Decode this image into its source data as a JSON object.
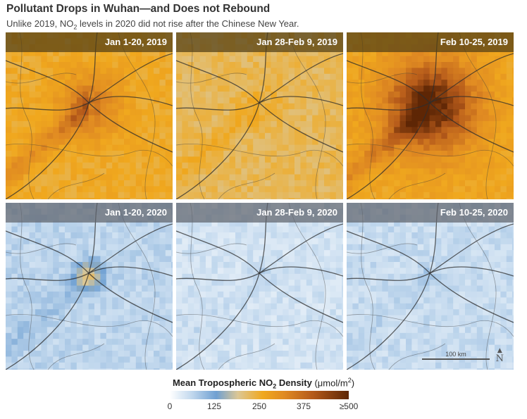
{
  "title": "Pollutant Drops in Wuhan—and Does not Rebound",
  "subtitle": {
    "before": "Unlike 2019, NO",
    "sub": "2",
    "after": " levels in 2020 did not rise after the Chinese New Year."
  },
  "panels": [
    {
      "label": "Jan 1-20, 2019",
      "level": "medium-high"
    },
    {
      "label": "Jan 28-Feb 9, 2019",
      "level": "medium"
    },
    {
      "label": "Feb 10-25, 2019",
      "level": "very-high"
    },
    {
      "label": "Jan 1-20, 2020",
      "level": "low-moderate"
    },
    {
      "label": "Jan 28-Feb 9, 2020",
      "level": "low"
    },
    {
      "label": "Feb 10-25, 2020",
      "level": "low"
    }
  ],
  "scale": {
    "label": "100 km",
    "north_symbol": "N"
  },
  "colorbar": {
    "title_bold_before": "Mean Tropospheric NO",
    "title_bold_sub": "2",
    "title_bold_after": " Density",
    "units_before": " (μmol/m",
    "units_sup": "2",
    "units_after": ")",
    "ticks": [
      "0",
      "125",
      "250",
      "375",
      "≥500"
    ],
    "colors": [
      "#ffffff",
      "#c3d9ee",
      "#6fa0d2",
      "#dcc795",
      "#f0a81e",
      "#e08a22",
      "#b4591a",
      "#5e2605"
    ]
  }
}
